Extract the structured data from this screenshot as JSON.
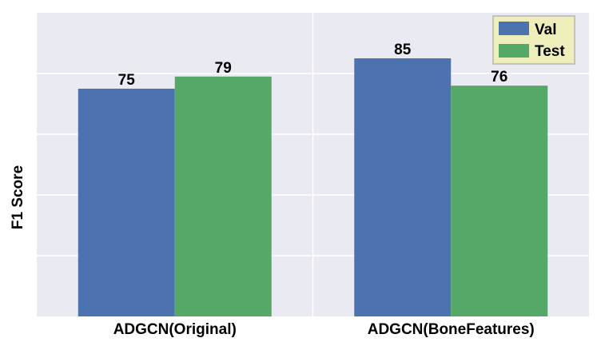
{
  "chart_data": {
    "type": "bar",
    "categories": [
      "ADGCN(Original)",
      "ADGCN(BoneFeatures)"
    ],
    "series": [
      {
        "name": "Val",
        "values": [
          75,
          85
        ],
        "color": "#4c72b0"
      },
      {
        "name": "Test",
        "values": [
          79,
          76
        ],
        "color": "#55a868"
      }
    ],
    "xlabel": "",
    "ylabel": "F1 Score",
    "ylim": [
      0,
      100
    ],
    "yticks": [
      0,
      20,
      40,
      60,
      80,
      100
    ],
    "show_ytick_labels": false,
    "grid": true,
    "legend_position": "top-right",
    "background_color": "#eaeaf2",
    "legend_background": "#eeeebb"
  }
}
